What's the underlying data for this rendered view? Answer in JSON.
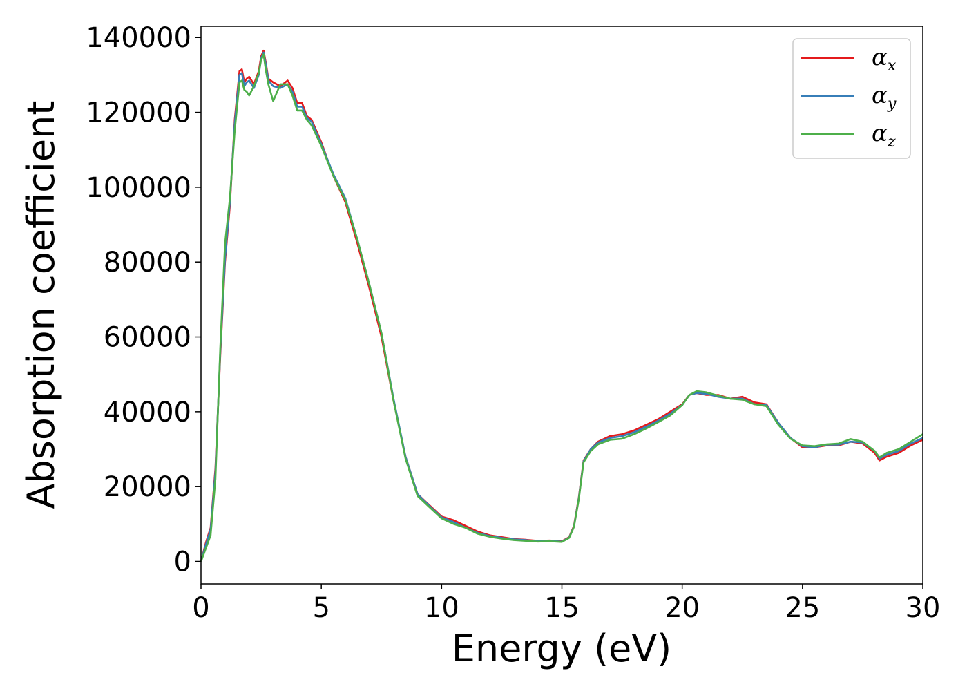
{
  "chart_data": {
    "type": "line",
    "title": "",
    "xlabel": "Energy (eV)",
    "ylabel": "Absorption coefficient",
    "xlim": [
      0,
      30
    ],
    "ylim": [
      -6000,
      143000
    ],
    "xticks": [
      0,
      5,
      10,
      15,
      20,
      25,
      30
    ],
    "xtick_labels": [
      "0",
      "5",
      "10",
      "15",
      "20",
      "25",
      "30"
    ],
    "yticks": [
      0,
      20000,
      40000,
      60000,
      80000,
      100000,
      120000,
      140000
    ],
    "ytick_labels": [
      "0",
      "20000",
      "40000",
      "60000",
      "80000",
      "100000",
      "120000",
      "140000"
    ],
    "grid": false,
    "legend": "top-right",
    "legend_entries": [
      {
        "symbol": "α",
        "sub": "x"
      },
      {
        "symbol": "α",
        "sub": "y"
      },
      {
        "symbol": "α",
        "sub": "z"
      }
    ],
    "series": [
      {
        "color": "#e41a1c",
        "x": [
          0,
          0.2,
          0.4,
          0.6,
          0.8,
          1.0,
          1.2,
          1.4,
          1.6,
          1.7,
          1.8,
          1.9,
          2.0,
          2.2,
          2.4,
          2.5,
          2.6,
          2.7,
          2.8,
          3.0,
          3.3,
          3.6,
          3.8,
          4.0,
          4.2,
          4.4,
          4.6,
          5.0,
          5.5,
          6.0,
          6.5,
          7.0,
          7.5,
          8.0,
          8.5,
          9.0,
          9.5,
          10.0,
          10.5,
          11.0,
          11.5,
          12.0,
          12.5,
          13.0,
          13.5,
          14.0,
          14.5,
          15.0,
          15.3,
          15.5,
          15.7,
          15.9,
          16.2,
          16.5,
          17.0,
          17.5,
          18.0,
          18.5,
          19.0,
          19.5,
          20.0,
          20.3,
          20.6,
          21.0,
          21.5,
          22.0,
          22.5,
          23.0,
          23.5,
          24.0,
          24.5,
          25.0,
          25.5,
          26.0,
          26.5,
          27.0,
          27.5,
          28.0,
          28.2,
          28.5,
          29.0,
          29.5,
          30.0
        ],
        "y": [
          0,
          5000,
          9000,
          25000,
          55000,
          80000,
          95000,
          118000,
          131000,
          131500,
          128000,
          129000,
          129500,
          127500,
          131000,
          135000,
          136500,
          133000,
          129000,
          128000,
          127000,
          128500,
          126500,
          122500,
          122500,
          119000,
          118000,
          112000,
          103000,
          96000,
          85000,
          73000,
          60000,
          43000,
          28000,
          18000,
          15000,
          12000,
          11000,
          9500,
          8000,
          7000,
          6500,
          6000,
          5800,
          5500,
          5600,
          5400,
          6500,
          9500,
          17000,
          27000,
          30000,
          32000,
          33500,
          34000,
          35000,
          36500,
          38000,
          40000,
          42000,
          44500,
          45000,
          44500,
          44500,
          43500,
          44000,
          42500,
          42000,
          37000,
          33000,
          30500,
          30500,
          31000,
          31000,
          32000,
          31500,
          29000,
          27000,
          28000,
          29000,
          31000,
          32500
        ]
      },
      {
        "color": "#377eb8",
        "x": [
          0,
          0.2,
          0.4,
          0.6,
          0.8,
          1.0,
          1.2,
          1.4,
          1.6,
          1.7,
          1.8,
          1.9,
          2.0,
          2.2,
          2.4,
          2.5,
          2.6,
          2.7,
          2.8,
          3.0,
          3.3,
          3.6,
          3.8,
          4.0,
          4.2,
          4.4,
          4.6,
          5.0,
          5.5,
          6.0,
          6.5,
          7.0,
          7.5,
          8.0,
          8.5,
          9.0,
          9.5,
          10.0,
          10.5,
          11.0,
          11.5,
          12.0,
          12.5,
          13.0,
          13.5,
          14.0,
          14.5,
          15.0,
          15.3,
          15.5,
          15.7,
          15.9,
          16.2,
          16.5,
          17.0,
          17.5,
          18.0,
          18.5,
          19.0,
          19.5,
          20.0,
          20.3,
          20.6,
          21.0,
          21.5,
          22.0,
          22.5,
          23.0,
          23.5,
          24.0,
          24.5,
          25.0,
          25.5,
          26.0,
          26.5,
          27.0,
          27.5,
          28.0,
          28.2,
          28.5,
          29.0,
          29.5,
          30.0
        ],
        "y": [
          0,
          4500,
          8500,
          24000,
          56000,
          81000,
          96000,
          117000,
          130000,
          130500,
          127000,
          128000,
          128500,
          126500,
          130000,
          134500,
          136000,
          132500,
          128500,
          127000,
          126500,
          127500,
          125500,
          121500,
          121500,
          118500,
          117500,
          111500,
          103500,
          97000,
          86000,
          74000,
          61000,
          43500,
          28000,
          18000,
          14800,
          11800,
          10500,
          9000,
          7600,
          6800,
          6300,
          5900,
          5700,
          5400,
          5500,
          5300,
          6400,
          9300,
          16800,
          26800,
          30000,
          31800,
          33000,
          33500,
          34500,
          36000,
          37600,
          39500,
          41800,
          44500,
          45000,
          44800,
          44000,
          43500,
          43500,
          42000,
          41800,
          37000,
          33000,
          30800,
          30500,
          31200,
          31200,
          32000,
          31800,
          29500,
          27500,
          28500,
          29500,
          31500,
          33000
        ]
      },
      {
        "color": "#4daf4a",
        "x": [
          0,
          0.2,
          0.4,
          0.6,
          0.8,
          1.0,
          1.2,
          1.4,
          1.6,
          1.7,
          1.8,
          1.9,
          2.0,
          2.2,
          2.4,
          2.5,
          2.6,
          2.7,
          2.8,
          3.0,
          3.3,
          3.6,
          3.8,
          4.0,
          4.2,
          4.4,
          4.6,
          5.0,
          5.5,
          6.0,
          6.5,
          7.0,
          7.5,
          8.0,
          8.5,
          9.0,
          9.5,
          10.0,
          10.5,
          11.0,
          11.5,
          12.0,
          12.5,
          13.0,
          13.5,
          14.0,
          14.5,
          15.0,
          15.3,
          15.5,
          15.7,
          15.9,
          16.2,
          16.5,
          17.0,
          17.5,
          18.0,
          18.5,
          19.0,
          19.5,
          20.0,
          20.3,
          20.6,
          21.0,
          21.5,
          22.0,
          22.5,
          23.0,
          23.5,
          24.0,
          24.5,
          25.0,
          25.5,
          26.0,
          26.5,
          27.0,
          27.5,
          28.0,
          28.2,
          28.5,
          29.0,
          29.5,
          30.0
        ],
        "y": [
          0,
          3500,
          7000,
          22000,
          57000,
          85000,
          97000,
          115000,
          128000,
          128500,
          126000,
          125500,
          124500,
          127000,
          130500,
          134000,
          135500,
          131000,
          127500,
          123000,
          127500,
          127500,
          124500,
          120500,
          120500,
          118000,
          116500,
          111000,
          103000,
          96500,
          86000,
          74000,
          61000,
          43000,
          27500,
          17500,
          14500,
          11500,
          10000,
          9000,
          7400,
          6600,
          6100,
          5700,
          5500,
          5300,
          5400,
          5200,
          6300,
          9200,
          16500,
          26500,
          29500,
          31300,
          32500,
          32800,
          34000,
          35500,
          37200,
          39000,
          41800,
          44500,
          45500,
          45200,
          44300,
          43500,
          43200,
          42000,
          41500,
          36500,
          32800,
          31000,
          30800,
          31300,
          31500,
          32700,
          32000,
          29500,
          27800,
          29000,
          30000,
          32000,
          34000
        ]
      }
    ]
  }
}
